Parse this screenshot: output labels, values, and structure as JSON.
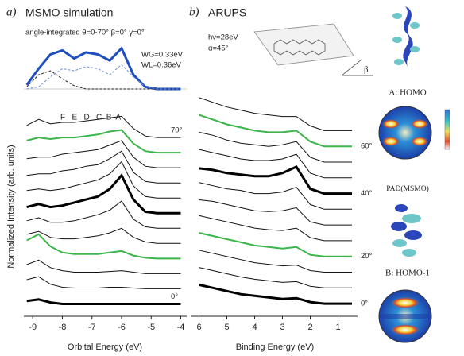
{
  "chart_data": [
    {
      "type": "line",
      "title": "angle-integrated  θ=0-70°  β=0° γ=0°",
      "annotations": [
        "WG=0.33eV",
        "WL=0.36eV"
      ],
      "x": [
        -9.2,
        -8.8,
        -8.4,
        -8,
        -7.6,
        -7.2,
        -6.8,
        -6.4,
        -6,
        -5.6,
        -5.2,
        -4.8,
        -4.4,
        -4
      ],
      "xlim": [
        -9.3,
        -3.8
      ],
      "ylim": [
        0,
        1.25
      ],
      "series": [
        {
          "color": "#1f4fbf",
          "linewidth": 3,
          "linestyle": "solid",
          "values": [
            0.1,
            0.5,
            0.85,
            0.95,
            0.75,
            0.9,
            0.85,
            0.7,
            1.0,
            0.35,
            0.05,
            0,
            0,
            0
          ]
        },
        {
          "color": "#222222",
          "linewidth": 1,
          "linestyle": "dashed",
          "values": [
            0.05,
            0.35,
            0.45,
            0.25,
            0.08,
            0,
            0,
            0,
            0,
            0,
            0,
            0,
            0,
            0
          ]
        },
        {
          "color": "#6f8fd8",
          "linewidth": 1,
          "linestyle": "dashed",
          "values": [
            0,
            0.05,
            0.3,
            0.5,
            0.45,
            0.55,
            0.5,
            0.35,
            0.6,
            0.3,
            0.05,
            0,
            0,
            0
          ]
        }
      ]
    },
    {
      "type": "line",
      "panel_label": "a)",
      "title": "MSMO simulation",
      "peak_letters": "F   E   D   C  B  A",
      "xlabel": "Orbital Energy (eV)",
      "ylabel": "Normalized Intensity (arb. units)",
      "x": [
        -9.2,
        -8.8,
        -8.4,
        -8,
        -7.6,
        -7.2,
        -6.8,
        -6.4,
        -6,
        -5.6,
        -5.2,
        -4.8,
        -4.4,
        -4
      ],
      "xlim": [
        -9.3,
        -3.8
      ],
      "ylim": [
        -0.5,
        13
      ],
      "xticks": [
        -9,
        -8,
        -7,
        -6,
        -5,
        -4
      ],
      "series": [
        {
          "label": "0°",
          "color": "#000000",
          "linewidth": 3,
          "values": [
            0.2,
            0.3,
            0.1,
            0,
            0,
            0,
            0,
            0,
            0,
            0,
            0,
            0,
            0,
            0
          ]
        },
        {
          "color": "#111111",
          "linewidth": 1,
          "values": [
            1.6,
            1.8,
            1.3,
            1.1,
            1.05,
            1.05,
            1.05,
            1.1,
            1.1,
            1.05,
            1,
            1,
            1,
            1
          ]
        },
        {
          "color": "#111111",
          "linewidth": 1,
          "values": [
            2.6,
            2.9,
            2.4,
            2.2,
            2.1,
            2.1,
            2.1,
            2.15,
            2.2,
            2.1,
            2,
            2,
            2,
            2
          ]
        },
        {
          "color": "#3cb54a",
          "linewidth": 2,
          "values": [
            4.2,
            4.6,
            3.8,
            3.4,
            3.3,
            3.3,
            3.3,
            3.4,
            3.5,
            3.2,
            3.05,
            3,
            3,
            3
          ]
        },
        {
          "color": "#111111",
          "linewidth": 1,
          "values": [
            4.6,
            4.8,
            4.4,
            4.3,
            4.3,
            4.4,
            4.5,
            4.7,
            5.0,
            4.4,
            4.1,
            4,
            4,
            4
          ]
        },
        {
          "color": "#111111",
          "linewidth": 1,
          "values": [
            5.5,
            5.7,
            5.4,
            5.4,
            5.5,
            5.7,
            5.9,
            6.2,
            6.8,
            5.6,
            5.1,
            5,
            5,
            5
          ]
        },
        {
          "color": "#000000",
          "linewidth": 3,
          "values": [
            6.4,
            6.6,
            6.4,
            6.5,
            6.7,
            6.9,
            7.1,
            7.6,
            8.5,
            6.9,
            6.1,
            6,
            6,
            6
          ]
        },
        {
          "color": "#111111",
          "linewidth": 1,
          "values": [
            7.5,
            7.6,
            7.5,
            7.6,
            7.8,
            8.0,
            8.2,
            8.6,
            9.4,
            7.8,
            7.1,
            7,
            7,
            7
          ]
        },
        {
          "color": "#111111",
          "linewidth": 1,
          "values": [
            8.5,
            8.6,
            8.6,
            8.8,
            8.9,
            9.1,
            9.2,
            9.6,
            10.1,
            8.7,
            8.1,
            8,
            8,
            8
          ]
        },
        {
          "color": "#111111",
          "linewidth": 1,
          "values": [
            9.6,
            9.7,
            9.7,
            9.9,
            10.0,
            10.1,
            10.2,
            10.5,
            10.8,
            9.7,
            9.1,
            9,
            9,
            9
          ]
        },
        {
          "color": "#3cb54a",
          "linewidth": 2,
          "values": [
            10.8,
            11.0,
            10.9,
            11.0,
            11.0,
            11.1,
            11.2,
            11.4,
            11.5,
            10.6,
            10.1,
            10,
            10,
            10
          ]
        },
        {
          "label": "70°",
          "color": "#111111",
          "linewidth": 1,
          "values": [
            11.8,
            12.2,
            11.9,
            12.0,
            12.0,
            12.1,
            12.2,
            12.3,
            12.4,
            11.6,
            11.1,
            11,
            11,
            11
          ]
        }
      ]
    },
    {
      "type": "line",
      "panel_label": "b)",
      "title": "ARUPS",
      "annotations": [
        "hν=28eV",
        "α=45°"
      ],
      "xlabel": "Binding Energy (eV)",
      "x": [
        6,
        5.5,
        5,
        4.5,
        4,
        3.5,
        3,
        2.5,
        2,
        1.5,
        1,
        0.5
      ],
      "xlim": [
        6.3,
        0.3
      ],
      "ylim": [
        -0.5,
        14
      ],
      "xticks": [
        6,
        5,
        4,
        3,
        2,
        1
      ],
      "series": [
        {
          "label": "0°",
          "color": "#000000",
          "linewidth": 3,
          "values": [
            1.2,
            1.0,
            0.8,
            0.6,
            0.5,
            0.4,
            0.3,
            0.35,
            0.1,
            0,
            0,
            0
          ]
        },
        {
          "color": "#111111",
          "linewidth": 1,
          "values": [
            2.3,
            2.1,
            1.9,
            1.7,
            1.55,
            1.45,
            1.35,
            1.4,
            1.1,
            1,
            1,
            1
          ]
        },
        {
          "color": "#111111",
          "linewidth": 1,
          "values": [
            3.4,
            3.2,
            3.0,
            2.8,
            2.6,
            2.5,
            2.4,
            2.45,
            2.1,
            2,
            2,
            2
          ]
        },
        {
          "label": "20°",
          "color": "#3cb54a",
          "linewidth": 2,
          "values": [
            4.5,
            4.3,
            4.1,
            3.9,
            3.7,
            3.6,
            3.5,
            3.6,
            3.1,
            3,
            3,
            3
          ]
        },
        {
          "color": "#111111",
          "linewidth": 1,
          "values": [
            5.6,
            5.4,
            5.2,
            5.0,
            4.8,
            4.7,
            4.65,
            4.8,
            4.2,
            4,
            4,
            4
          ]
        },
        {
          "color": "#111111",
          "linewidth": 1,
          "values": [
            6.6,
            6.5,
            6.3,
            6.1,
            5.9,
            5.85,
            5.9,
            6.1,
            5.2,
            5,
            5,
            5
          ]
        },
        {
          "color": "#111111",
          "linewidth": 1,
          "values": [
            7.7,
            7.5,
            7.3,
            7.2,
            7.0,
            7.0,
            7.1,
            7.4,
            6.3,
            6,
            6,
            6
          ]
        },
        {
          "label": "40°",
          "color": "#000000",
          "linewidth": 3,
          "values": [
            8.6,
            8.5,
            8.3,
            8.2,
            8.1,
            8.1,
            8.3,
            8.7,
            7.3,
            7,
            7,
            7
          ]
        },
        {
          "color": "#111111",
          "linewidth": 1,
          "values": [
            9.8,
            9.6,
            9.4,
            9.2,
            9.1,
            9.1,
            9.2,
            9.5,
            8.3,
            8,
            8,
            8
          ]
        },
        {
          "color": "#111111",
          "linewidth": 1,
          "values": [
            10.9,
            10.7,
            10.4,
            10.2,
            10.1,
            10.0,
            10.1,
            10.3,
            9.3,
            9,
            9,
            9
          ]
        },
        {
          "label": "60°",
          "color": "#3cb54a",
          "linewidth": 2,
          "values": [
            12.0,
            11.7,
            11.4,
            11.2,
            11.0,
            10.9,
            10.9,
            11.0,
            10.3,
            10,
            10,
            10
          ]
        },
        {
          "color": "#111111",
          "linewidth": 1,
          "values": [
            13.1,
            12.8,
            12.5,
            12.3,
            12.1,
            12.0,
            11.9,
            11.9,
            11.3,
            11,
            11,
            11
          ]
        }
      ]
    }
  ],
  "side": {
    "homo": "A: HOMO",
    "pad": "PAD(MSMO)",
    "homo1": "B: HOMO-1",
    "beta": "β"
  }
}
